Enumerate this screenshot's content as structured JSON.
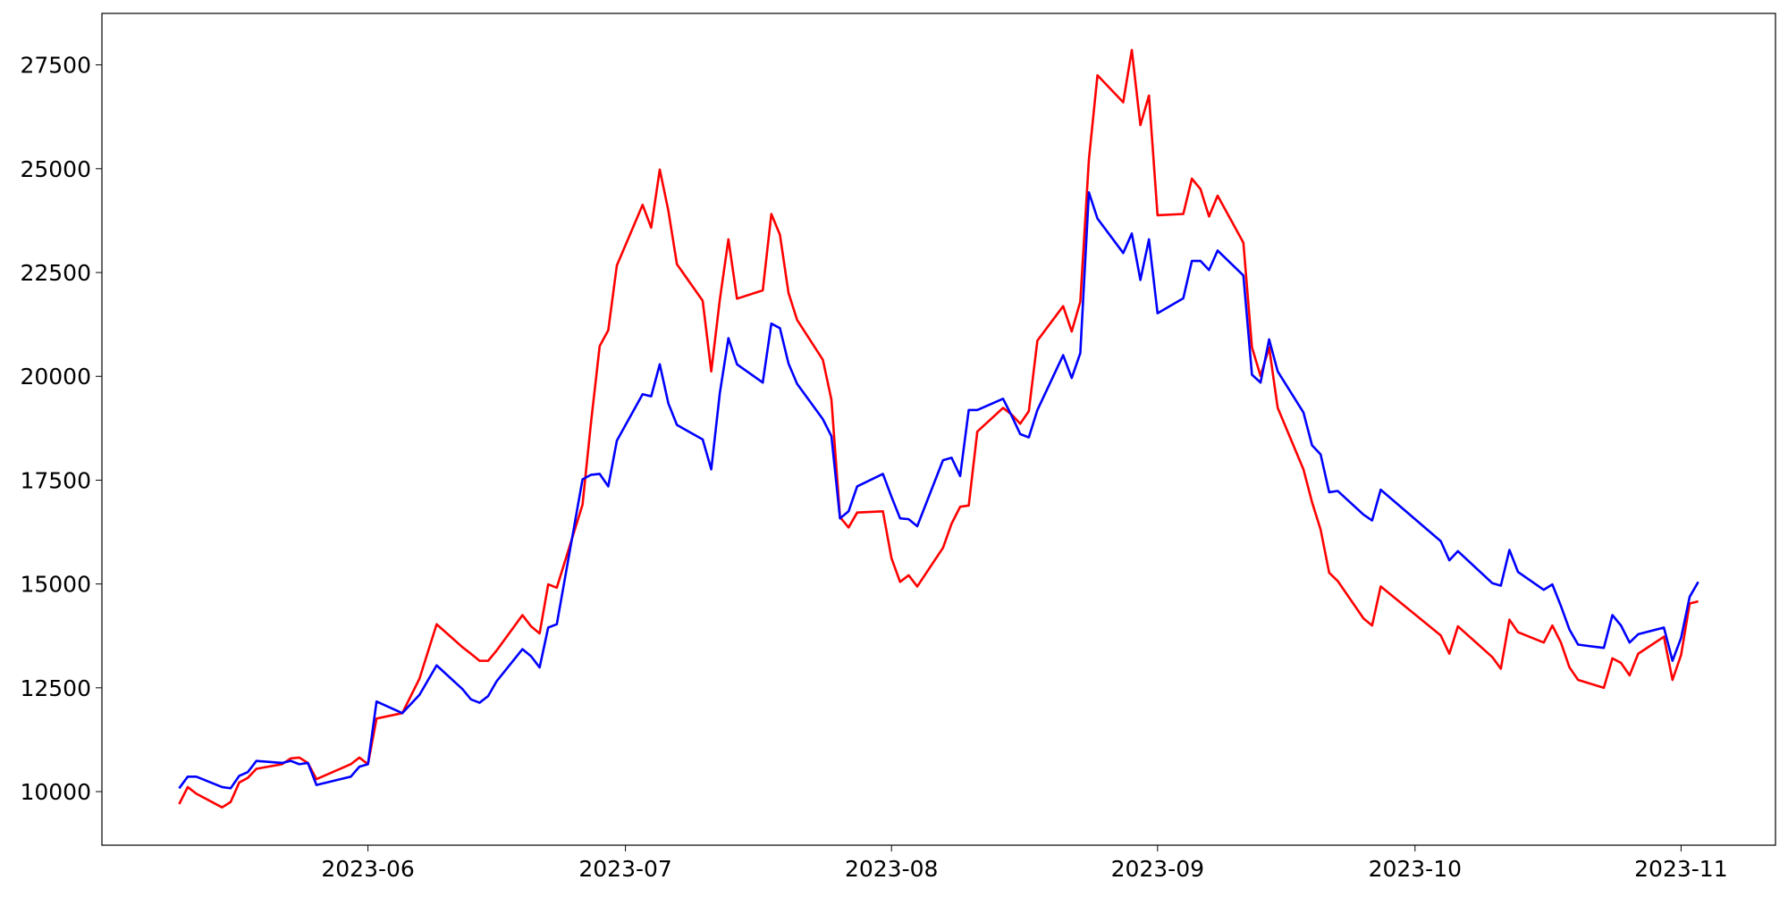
{
  "chart_data": {
    "type": "line",
    "x": [
      "2023-05-10",
      "2023-05-11",
      "2023-05-12",
      "2023-05-15",
      "2023-05-16",
      "2023-05-17",
      "2023-05-18",
      "2023-05-19",
      "2023-05-22",
      "2023-05-23",
      "2023-05-24",
      "2023-05-25",
      "2023-05-26",
      "2023-05-30",
      "2023-05-31",
      "2023-06-01",
      "2023-06-02",
      "2023-06-05",
      "2023-06-07",
      "2023-06-09",
      "2023-06-12",
      "2023-06-13",
      "2023-06-14",
      "2023-06-15",
      "2023-06-16",
      "2023-06-19",
      "2023-06-20",
      "2023-06-21",
      "2023-06-22",
      "2023-06-23",
      "2023-06-26",
      "2023-06-27",
      "2023-06-28",
      "2023-06-29",
      "2023-06-30",
      "2023-07-03",
      "2023-07-04",
      "2023-07-05",
      "2023-07-06",
      "2023-07-07",
      "2023-07-10",
      "2023-07-11",
      "2023-07-12",
      "2023-07-13",
      "2023-07-14",
      "2023-07-17",
      "2023-07-18",
      "2023-07-19",
      "2023-07-20",
      "2023-07-21",
      "2023-07-24",
      "2023-07-25",
      "2023-07-26",
      "2023-07-27",
      "2023-07-28",
      "2023-07-31",
      "2023-08-01",
      "2023-08-02",
      "2023-08-03",
      "2023-08-04",
      "2023-08-07",
      "2023-08-08",
      "2023-08-09",
      "2023-08-10",
      "2023-08-11",
      "2023-08-14",
      "2023-08-15",
      "2023-08-16",
      "2023-08-17",
      "2023-08-18",
      "2023-08-21",
      "2023-08-22",
      "2023-08-23",
      "2023-08-24",
      "2023-08-25",
      "2023-08-28",
      "2023-08-29",
      "2023-08-30",
      "2023-08-31",
      "2023-09-01",
      "2023-09-04",
      "2023-09-05",
      "2023-09-06",
      "2023-09-07",
      "2023-09-08",
      "2023-09-11",
      "2023-09-12",
      "2023-09-13",
      "2023-09-14",
      "2023-09-15",
      "2023-09-18",
      "2023-09-19",
      "2023-09-20",
      "2023-09-21",
      "2023-09-22",
      "2023-09-25",
      "2023-09-26",
      "2023-09-27",
      "2023-10-04",
      "2023-10-05",
      "2023-10-06",
      "2023-10-10",
      "2023-10-11",
      "2023-10-12",
      "2023-10-13",
      "2023-10-16",
      "2023-10-17",
      "2023-10-18",
      "2023-10-19",
      "2023-10-20",
      "2023-10-23",
      "2023-10-24",
      "2023-10-25",
      "2023-10-26",
      "2023-10-27",
      "2023-10-30",
      "2023-10-31",
      "2023-11-01",
      "2023-11-02",
      "2023-11-03"
    ],
    "series": [
      {
        "color": "#ff0000",
        "values": [
          9700,
          10110,
          9950,
          9620,
          9750,
          10220,
          10330,
          10550,
          10660,
          10800,
          10820,
          10690,
          10300,
          10660,
          10820,
          10660,
          11760,
          11890,
          12720,
          14030,
          13480,
          13320,
          13150,
          13150,
          13400,
          14250,
          13980,
          13810,
          14990,
          14910,
          16910,
          18910,
          20730,
          21110,
          22670,
          24130,
          23580,
          24980,
          23990,
          22700,
          21820,
          20120,
          21850,
          23300,
          21870,
          22070,
          23910,
          23410,
          22010,
          21360,
          20400,
          19440,
          16610,
          16360,
          16720,
          16750,
          15620,
          15050,
          15210,
          14940,
          15870,
          16450,
          16860,
          16890,
          18670,
          19240,
          19080,
          18860,
          19160,
          20860,
          21690,
          21080,
          21800,
          25220,
          27250,
          26600,
          27860,
          26050,
          26760,
          23880,
          23910,
          24760,
          24510,
          23850,
          24350,
          23220,
          20700,
          20010,
          20700,
          19240,
          17760,
          16970,
          16310,
          15270,
          15070,
          14170,
          14000,
          14940,
          13760,
          13320,
          13980,
          13240,
          12960,
          14140,
          13840,
          13590,
          14000,
          13590,
          12990,
          12690,
          12500,
          13210,
          13100,
          12800,
          13320,
          13730,
          12690,
          13290,
          14530,
          14580
        ]
      },
      {
        "color": "#0000ff",
        "values": [
          10080,
          10360,
          10360,
          10110,
          10080,
          10380,
          10470,
          10740,
          10690,
          10740,
          10660,
          10690,
          10160,
          10360,
          10600,
          10660,
          12170,
          11890,
          12330,
          13040,
          12470,
          12220,
          12140,
          12300,
          12660,
          13430,
          13260,
          12990,
          13950,
          14030,
          17520,
          17630,
          17650,
          17350,
          18450,
          19570,
          19520,
          20290,
          19350,
          18830,
          18480,
          17760,
          19600,
          20920,
          20290,
          19850,
          21270,
          21160,
          20310,
          19820,
          18970,
          18560,
          16580,
          16750,
          17350,
          17650,
          17100,
          16580,
          16560,
          16390,
          17980,
          18040,
          17600,
          19190,
          19190,
          19460,
          19050,
          18610,
          18530,
          19190,
          20510,
          19960,
          20560,
          24430,
          23800,
          22970,
          23440,
          22320,
          23300,
          21520,
          21880,
          22780,
          22780,
          22560,
          23030,
          22430,
          20040,
          19850,
          20890,
          20120,
          19130,
          18340,
          18120,
          17210,
          17240,
          16670,
          16530,
          17270,
          16030,
          15570,
          15790,
          15020,
          14960,
          15820,
          15290,
          14860,
          14990,
          14470,
          13900,
          13540,
          13460,
          14250,
          14000,
          13590,
          13790,
          13950,
          13150,
          13700,
          14690,
          15050
        ]
      }
    ],
    "xlim": [
      "2023-05-01",
      "2023-11-12"
    ],
    "xticks": [
      {
        "value": "2023-06-01",
        "label": "2023-06"
      },
      {
        "value": "2023-07-01",
        "label": "2023-07"
      },
      {
        "value": "2023-08-01",
        "label": "2023-08"
      },
      {
        "value": "2023-09-01",
        "label": "2023-09"
      },
      {
        "value": "2023-10-01",
        "label": "2023-10"
      },
      {
        "value": "2023-11-01",
        "label": "2023-11"
      }
    ],
    "ylim": [
      8710,
      28740
    ],
    "yticks": [
      10000,
      12500,
      15000,
      17500,
      20000,
      22500,
      25000,
      27500
    ],
    "grid": false
  }
}
